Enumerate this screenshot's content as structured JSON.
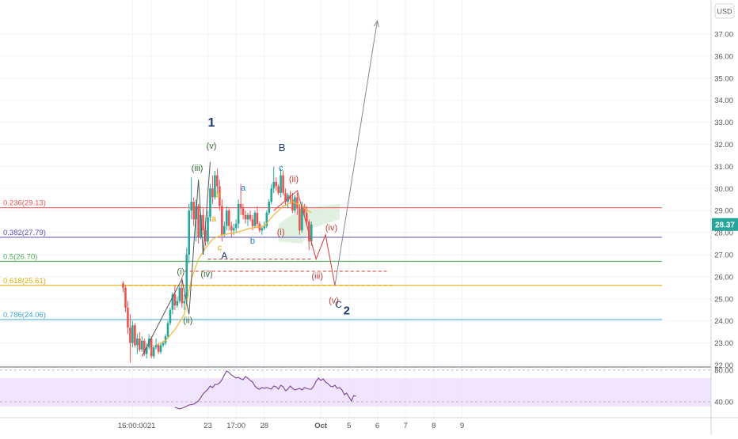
{
  "chart_data": {
    "type": "candlestick",
    "currency_label": "USD",
    "current_price": "28.37",
    "y_ticks": [
      "37.00",
      "36.00",
      "35.00",
      "34.00",
      "33.00",
      "32.00",
      "31.00",
      "30.00",
      "29.00",
      "28.00",
      "27.00",
      "26.00",
      "25.00",
      "24.00",
      "23.00",
      "22.00"
    ],
    "rsi_ticks": [
      "80.00",
      "40.00"
    ],
    "x_ticks": [
      {
        "label": "16:00:00",
        "t": 4
      },
      {
        "label": "21",
        "t": 12
      },
      {
        "label": "23",
        "t": 36
      },
      {
        "label": "17:00",
        "t": 48
      },
      {
        "label": "28",
        "t": 60
      },
      {
        "label": "Oct",
        "t": 84
      },
      {
        "label": "5",
        "t": 96
      },
      {
        "label": "6",
        "t": 108
      },
      {
        "label": "7",
        "t": 120
      },
      {
        "label": "8",
        "t": 132
      },
      {
        "label": "9",
        "t": 144
      }
    ],
    "fib_levels": [
      {
        "label": "0.236(29.13)",
        "value": 29.13,
        "color": "#f05350"
      },
      {
        "label": "0.382(27.79)",
        "value": 27.79,
        "color": "#5b4fb5"
      },
      {
        "label": "0.5(26.70)",
        "value": 26.7,
        "color": "#4caf50"
      },
      {
        "label": "0.618(25.61)",
        "value": 25.61,
        "color": "#e0a800"
      },
      {
        "label": "0.786(24.06)",
        "value": 24.06,
        "color": "#42a5d6"
      }
    ],
    "candles": [
      [
        0,
        25.7,
        25.8,
        25.3,
        25.5
      ],
      [
        1,
        25.5,
        25.6,
        24.4,
        24.6
      ],
      [
        2,
        24.6,
        24.9,
        23.4,
        23.7
      ],
      [
        3,
        23.7,
        24.3,
        22.1,
        23.0
      ],
      [
        4,
        23.0,
        24.0,
        22.8,
        23.8
      ],
      [
        5,
        23.8,
        23.9,
        22.8,
        22.9
      ],
      [
        6,
        22.9,
        23.4,
        22.5,
        23.2
      ],
      [
        7,
        23.2,
        23.5,
        22.6,
        22.7
      ],
      [
        8,
        22.7,
        23.3,
        22.6,
        23.1
      ],
      [
        9,
        23.1,
        23.2,
        22.4,
        22.5
      ],
      [
        10,
        22.5,
        23.0,
        22.3,
        22.8
      ],
      [
        11,
        22.8,
        23.4,
        22.7,
        23.2
      ],
      [
        12,
        23.2,
        23.3,
        22.3,
        22.4
      ],
      [
        13,
        22.4,
        22.9,
        22.3,
        22.8
      ],
      [
        14,
        22.8,
        23.2,
        22.7,
        22.9
      ],
      [
        15,
        22.9,
        23.0,
        22.5,
        22.6
      ],
      [
        16,
        22.6,
        23.0,
        22.5,
        22.9
      ],
      [
        17,
        22.9,
        23.1,
        22.8,
        23.0
      ],
      [
        18,
        23.0,
        23.4,
        22.9,
        23.3
      ],
      [
        19,
        23.3,
        24.0,
        23.2,
        23.9
      ],
      [
        20,
        23.9,
        24.6,
        23.8,
        24.5
      ],
      [
        21,
        24.5,
        25.3,
        24.3,
        25.2
      ],
      [
        22,
        25.2,
        25.6,
        24.5,
        24.7
      ],
      [
        23,
        24.7,
        25.1,
        24.6,
        24.9
      ],
      [
        24,
        24.9,
        25.6,
        24.8,
        25.5
      ],
      [
        25,
        25.5,
        26.0,
        24.6,
        24.8
      ],
      [
        26,
        24.8,
        25.2,
        24.5,
        24.9
      ],
      [
        27,
        24.9,
        27.3,
        24.7,
        27.0
      ],
      [
        28,
        27.0,
        29.3,
        26.6,
        29.0
      ],
      [
        29,
        29.0,
        30.5,
        28.6,
        29.4
      ],
      [
        30,
        29.4,
        29.6,
        28.3,
        28.6
      ],
      [
        31,
        28.6,
        29.5,
        27.6,
        29.2
      ],
      [
        32,
        29.2,
        29.3,
        27.5,
        27.8
      ],
      [
        33,
        27.8,
        28.9,
        27.7,
        28.8
      ],
      [
        34,
        28.8,
        29.1,
        27.9,
        28.1
      ],
      [
        35,
        28.1,
        28.3,
        27.4,
        27.6
      ],
      [
        36,
        27.6,
        29.0,
        27.5,
        28.7
      ],
      [
        37,
        28.7,
        30.2,
        28.5,
        30.0
      ],
      [
        38,
        30.0,
        30.6,
        29.3,
        29.6
      ],
      [
        39,
        29.6,
        30.8,
        29.5,
        30.6
      ],
      [
        40,
        30.6,
        30.9,
        29.8,
        30.1
      ],
      [
        41,
        30.1,
        30.4,
        29.0,
        29.2
      ],
      [
        42,
        29.2,
        29.5,
        27.6,
        27.9
      ],
      [
        43,
        27.9,
        28.5,
        27.8,
        28.3
      ],
      [
        44,
        28.3,
        29.2,
        28.1,
        29.0
      ],
      [
        45,
        29.0,
        29.1,
        28.1,
        28.3
      ],
      [
        46,
        28.3,
        28.5,
        27.8,
        28.1
      ],
      [
        47,
        28.1,
        28.4,
        27.9,
        28.2
      ],
      [
        48,
        28.2,
        28.6,
        28.0,
        28.4
      ],
      [
        49,
        28.4,
        29.5,
        28.2,
        29.3
      ],
      [
        50,
        29.3,
        30.2,
        28.8,
        29.1
      ],
      [
        51,
        29.1,
        29.3,
        28.6,
        28.8
      ],
      [
        52,
        28.8,
        29.0,
        28.4,
        28.6
      ],
      [
        53,
        28.6,
        28.9,
        28.3,
        28.8
      ],
      [
        54,
        28.8,
        29.0,
        28.5,
        28.6
      ],
      [
        55,
        28.6,
        28.8,
        28.1,
        28.3
      ],
      [
        56,
        28.3,
        29.0,
        28.2,
        28.9
      ],
      [
        57,
        28.9,
        29.2,
        28.2,
        28.4
      ],
      [
        58,
        28.4,
        28.5,
        28.0,
        28.1
      ],
      [
        59,
        28.1,
        28.3,
        27.9,
        28.2
      ],
      [
        60,
        28.2,
        28.5,
        28.1,
        28.3
      ],
      [
        61,
        28.3,
        29.0,
        28.2,
        28.9
      ],
      [
        62,
        28.9,
        29.5,
        28.8,
        29.4
      ],
      [
        63,
        29.4,
        30.2,
        29.3,
        30.0
      ],
      [
        64,
        30.0,
        31.0,
        29.8,
        30.3
      ],
      [
        65,
        30.3,
        30.5,
        29.9,
        30.1
      ],
      [
        66,
        30.1,
        30.2,
        29.7,
        29.8
      ],
      [
        67,
        29.8,
        30.9,
        29.6,
        30.6
      ],
      [
        68,
        30.6,
        30.8,
        29.7,
        29.8
      ],
      [
        69,
        29.8,
        30.0,
        29.2,
        29.4
      ],
      [
        70,
        29.4,
        29.8,
        29.1,
        29.7
      ],
      [
        71,
        29.7,
        29.9,
        29.3,
        29.5
      ],
      [
        72,
        29.5,
        29.8,
        28.9,
        29.0
      ],
      [
        73,
        29.0,
        29.7,
        28.9,
        29.6
      ],
      [
        74,
        29.6,
        29.8,
        28.8,
        29.1
      ],
      [
        75,
        29.1,
        29.3,
        27.9,
        28.1
      ],
      [
        76,
        28.1,
        29.4,
        28.0,
        29.2
      ],
      [
        77,
        29.2,
        29.3,
        28.8,
        28.9
      ],
      [
        78,
        28.9,
        29.2,
        28.3,
        28.5
      ],
      [
        79,
        28.5,
        28.6,
        27.2,
        27.6
      ],
      [
        80,
        27.6,
        28.5,
        27.4,
        28.37
      ]
    ],
    "ma_line": [
      [
        14,
        22.9
      ],
      [
        18,
        23.1
      ],
      [
        22,
        23.6
      ],
      [
        26,
        24.3
      ],
      [
        29,
        25.9
      ],
      [
        32,
        26.8
      ],
      [
        35,
        27.3
      ],
      [
        38,
        27.7
      ],
      [
        42,
        27.9
      ],
      [
        48,
        28.0
      ],
      [
        54,
        28.2
      ],
      [
        60,
        28.3
      ],
      [
        64,
        28.8
      ],
      [
        68,
        29.2
      ],
      [
        72,
        29.4
      ],
      [
        76,
        29.2
      ],
      [
        80,
        28.9
      ]
    ],
    "wave_path": [
      [
        8,
        22.4
      ],
      [
        25,
        25.9
      ],
      [
        28,
        24.3
      ],
      [
        32,
        30.4
      ],
      [
        34,
        27.0
      ],
      [
        37,
        31.2
      ]
    ],
    "projection_path": [
      [
        64,
        29.0
      ],
      [
        74,
        29.9
      ],
      [
        82,
        26.8
      ],
      [
        86,
        27.9
      ],
      [
        90,
        25.6
      ],
      [
        108,
        37.6
      ]
    ],
    "dashed_lines": [
      {
        "t1": 36,
        "t2": 80,
        "value": 26.8,
        "color": "#d84a4a"
      },
      {
        "t1": 26,
        "t2": 112,
        "value": 26.25,
        "color": "#d84a4a"
      },
      {
        "t1": 0,
        "t2": 115,
        "value": 25.61,
        "color": "#e0a800"
      }
    ],
    "wave_labels": [
      {
        "text": "1",
        "t": 37.5,
        "v": 32.8,
        "color": "#1e3a6e",
        "size": 16,
        "bold": true
      },
      {
        "text": "(v)",
        "t": 37.5,
        "v": 31.8,
        "color": "#3a6b35",
        "size": 11
      },
      {
        "text": "(iii)",
        "t": 31.5,
        "v": 30.8,
        "color": "#3a6b35",
        "size": 11
      },
      {
        "text": "(i)",
        "t": 24.5,
        "v": 26.1,
        "color": "#3a6b35",
        "size": 11
      },
      {
        "text": "(iv)",
        "t": 35.5,
        "v": 26.0,
        "color": "#3a6b35",
        "size": 11
      },
      {
        "text": "(ii)",
        "t": 27.5,
        "v": 23.9,
        "color": "#3a6b35",
        "size": 11
      },
      {
        "text": "b",
        "t": 40.5,
        "v": 29.6,
        "color": "#e0a800",
        "size": 11
      },
      {
        "text": "a",
        "t": 38.5,
        "v": 28.5,
        "color": "#e0a800",
        "size": 11
      },
      {
        "text": "c",
        "t": 41.0,
        "v": 27.2,
        "color": "#e0a800",
        "size": 11
      },
      {
        "text": "A",
        "t": 43.0,
        "v": 26.8,
        "color": "#1e3a6e",
        "size": 12
      },
      {
        "text": "a",
        "t": 51.0,
        "v": 29.9,
        "color": "#1f7fc1",
        "size": 11
      },
      {
        "text": "b",
        "t": 55.0,
        "v": 27.5,
        "color": "#1f7fc1",
        "size": 11
      },
      {
        "text": "B",
        "t": 67.5,
        "v": 31.7,
        "color": "#1e3a6e",
        "size": 13
      },
      {
        "text": "c",
        "t": 67.0,
        "v": 30.8,
        "color": "#1f7fc1",
        "size": 11
      },
      {
        "text": "(ii)",
        "t": 72.5,
        "v": 30.3,
        "color": "#c0392b",
        "size": 11
      },
      {
        "text": "(i)",
        "t": 67.0,
        "v": 27.9,
        "color": "#c0392b",
        "size": 11
      },
      {
        "text": "(iv)",
        "t": 88.5,
        "v": 28.1,
        "color": "#c0392b",
        "size": 11
      },
      {
        "text": "(iii)",
        "t": 82.5,
        "v": 25.9,
        "color": "#c0392b",
        "size": 11
      },
      {
        "text": "(v)",
        "t": 89.5,
        "v": 24.8,
        "color": "#c0392b",
        "size": 11
      },
      {
        "text": "C",
        "t": 91.5,
        "v": 24.6,
        "color": "#1e3a6e",
        "size": 12
      },
      {
        "text": "2",
        "t": 95.0,
        "v": 24.3,
        "color": "#1e3a6e",
        "size": 15,
        "bold": true
      }
    ],
    "rsi": [
      [
        0,
        33
      ],
      [
        2,
        31
      ],
      [
        4,
        33
      ],
      [
        6,
        36
      ],
      [
        8,
        37
      ],
      [
        10,
        41
      ],
      [
        12,
        50
      ],
      [
        14,
        56
      ],
      [
        15,
        60
      ],
      [
        16,
        58
      ],
      [
        17,
        62
      ],
      [
        18,
        62
      ],
      [
        19,
        64
      ],
      [
        20,
        68
      ],
      [
        21,
        74
      ],
      [
        22,
        79
      ],
      [
        23,
        77
      ],
      [
        24,
        74
      ],
      [
        25,
        72
      ],
      [
        26,
        70
      ],
      [
        27,
        71
      ],
      [
        28,
        69
      ],
      [
        29,
        68
      ],
      [
        30,
        72
      ],
      [
        31,
        70
      ],
      [
        32,
        67
      ],
      [
        33,
        65
      ],
      [
        34,
        60
      ],
      [
        35,
        57
      ],
      [
        36,
        56
      ],
      [
        37,
        58
      ],
      [
        38,
        57
      ],
      [
        39,
        58
      ],
      [
        40,
        57
      ],
      [
        41,
        56
      ],
      [
        42,
        60
      ],
      [
        43,
        59
      ],
      [
        44,
        56
      ],
      [
        45,
        61
      ],
      [
        46,
        59
      ],
      [
        47,
        54
      ],
      [
        48,
        56
      ],
      [
        49,
        60
      ],
      [
        50,
        57
      ],
      [
        51,
        55
      ],
      [
        52,
        56
      ],
      [
        53,
        57
      ],
      [
        54,
        55
      ],
      [
        55,
        58
      ],
      [
        56,
        57
      ],
      [
        57,
        56
      ],
      [
        58,
        56
      ],
      [
        59,
        60
      ],
      [
        60,
        66
      ],
      [
        61,
        70
      ],
      [
        62,
        67
      ],
      [
        63,
        69
      ],
      [
        64,
        65
      ],
      [
        65,
        63
      ],
      [
        66,
        60
      ],
      [
        67,
        59
      ],
      [
        68,
        61
      ],
      [
        69,
        57
      ],
      [
        70,
        58
      ],
      [
        71,
        55
      ],
      [
        72,
        49
      ],
      [
        73,
        51
      ],
      [
        74,
        46
      ],
      [
        75,
        41
      ],
      [
        76,
        48
      ],
      [
        77,
        47
      ]
    ]
  }
}
